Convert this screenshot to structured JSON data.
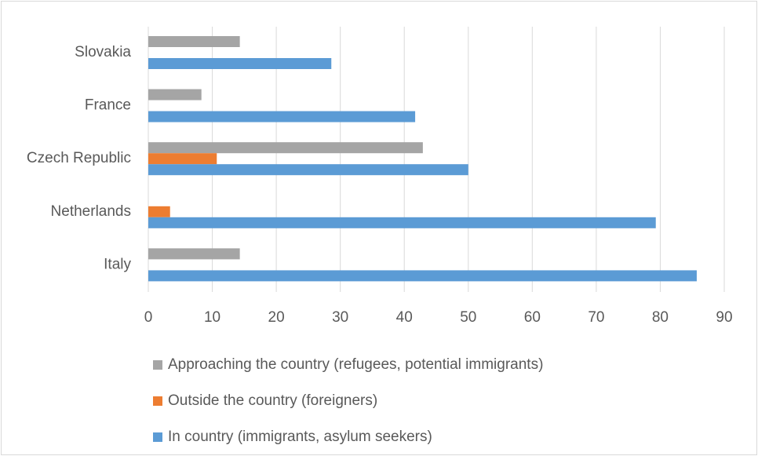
{
  "chart_data": {
    "type": "bar",
    "orientation": "horizontal",
    "categories": [
      "Slovakia",
      "France",
      "Czech Republic",
      "Netherlands",
      "Italy"
    ],
    "series": [
      {
        "name": "Approaching the country (refugees, potential immigrants)",
        "color": "#a5a5a5",
        "values": [
          14.3,
          8.3,
          42.9,
          0,
          14.3
        ]
      },
      {
        "name": "Outside the country (foreigners)",
        "color": "#ed7d31",
        "values": [
          0,
          0,
          10.7,
          3.4,
          0
        ]
      },
      {
        "name": "In country (immigrants, asylum seekers)",
        "color": "#5b9bd5",
        "values": [
          28.6,
          41.7,
          50.0,
          79.3,
          85.7
        ]
      }
    ],
    "xlim": [
      0,
      90
    ],
    "xticks": [
      "0",
      "10",
      "20",
      "30",
      "40",
      "50",
      "60",
      "70",
      "80",
      "90"
    ],
    "grid": true,
    "legend_position": "bottom"
  }
}
